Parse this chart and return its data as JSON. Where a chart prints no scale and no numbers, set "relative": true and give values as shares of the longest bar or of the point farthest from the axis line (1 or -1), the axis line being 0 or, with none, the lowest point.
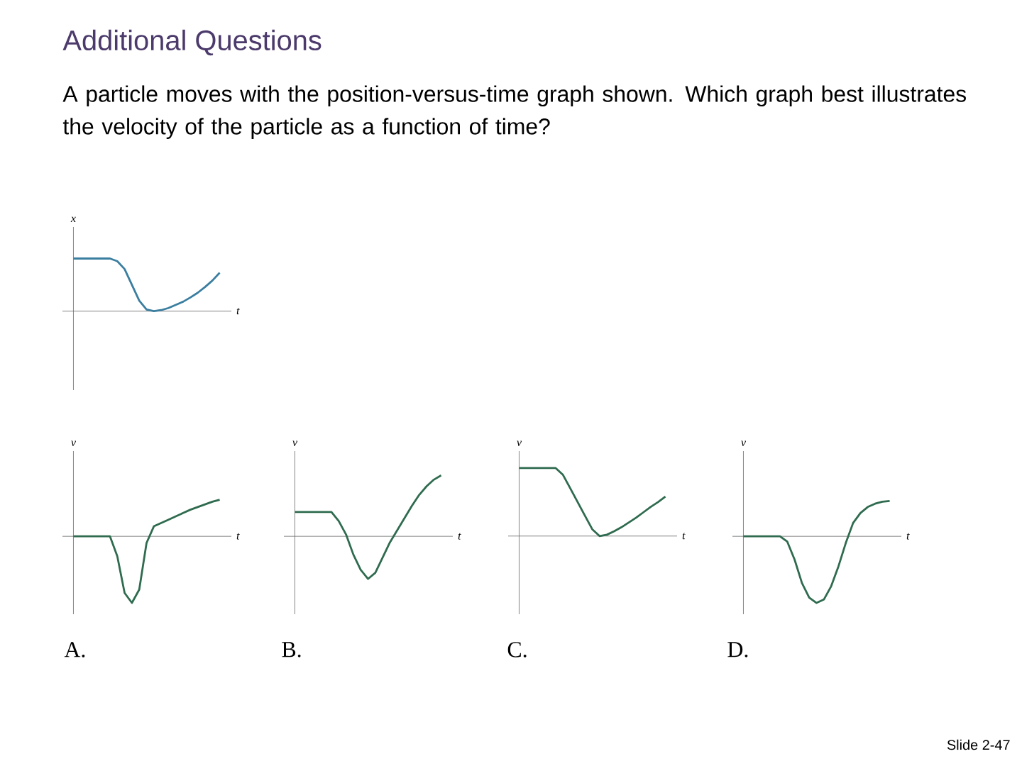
{
  "chart_data": [
    {
      "type": "line",
      "title": "Additional Questions",
      "subtitle": "A particle moves with the position-versus-time graph shown. Which graph best illustrates the velocity of the particle as a function of time?",
      "xlabel": "t",
      "ylabel": "x",
      "relative": true,
      "categories": [
        null,
        null,
        null,
        null,
        null,
        null,
        null,
        null,
        null,
        null,
        null,
        null,
        null,
        null,
        null,
        null,
        null,
        null,
        null,
        null,
        null
      ],
      "color": "#3a7ea0",
      "values": [
        1,
        1,
        1,
        1,
        1,
        1,
        0.95,
        0.8,
        0.5,
        0.2,
        0.03,
        0,
        0.02,
        0.06,
        0.12,
        0.18,
        0.26,
        0.35,
        0.46,
        0.58,
        0.73
      ],
      "annotations": [
        "Slide 2-47"
      ]
    },
    {
      "type": "line",
      "xlabel": "t",
      "ylabel": "v",
      "relative": true,
      "categories": [
        null,
        null,
        null,
        null,
        null,
        null,
        null,
        null,
        null,
        null,
        null,
        null,
        null,
        null,
        null,
        null,
        null,
        null,
        null,
        null,
        null
      ],
      "color": "#2f6b4f",
      "values": [
        0,
        0,
        0,
        0,
        0,
        0,
        -0.3,
        -0.85,
        -1,
        -0.8,
        -0.1,
        0.15,
        0.2,
        0.25,
        0.3,
        0.35,
        0.4,
        0.44,
        0.48,
        0.52,
        0.55
      ],
      "annotations": [
        "A."
      ]
    },
    {
      "type": "line",
      "xlabel": "t",
      "ylabel": "v",
      "relative": true,
      "categories": [
        null,
        null,
        null,
        null,
        null,
        null,
        null,
        null,
        null,
        null,
        null,
        null,
        null,
        null,
        null,
        null,
        null,
        null,
        null,
        null,
        null
      ],
      "color": "#2f6b4f",
      "values": [
        0.4,
        0.4,
        0.4,
        0.4,
        0.4,
        0.4,
        0.25,
        0.03,
        -0.3,
        -0.55,
        -0.7,
        -0.6,
        -0.35,
        -0.1,
        0.1,
        0.3,
        0.5,
        0.68,
        0.82,
        0.93,
        1
      ],
      "annotations": [
        "B."
      ]
    },
    {
      "type": "line",
      "xlabel": "t",
      "ylabel": "v",
      "relative": true,
      "categories": [
        null,
        null,
        null,
        null,
        null,
        null,
        null,
        null,
        null,
        null,
        null,
        null,
        null,
        null,
        null,
        null,
        null,
        null,
        null,
        null,
        null
      ],
      "color": "#2f6b4f",
      "values": [
        1,
        1,
        1,
        1,
        1,
        1,
        0.9,
        0.7,
        0.5,
        0.3,
        0.1,
        0,
        0.02,
        0.07,
        0.13,
        0.2,
        0.27,
        0.35,
        0.43,
        0.5,
        0.58
      ],
      "annotations": [
        "C."
      ]
    },
    {
      "type": "line",
      "xlabel": "t",
      "ylabel": "v",
      "relative": true,
      "categories": [
        null,
        null,
        null,
        null,
        null,
        null,
        null,
        null,
        null,
        null,
        null,
        null,
        null,
        null,
        null,
        null,
        null,
        null,
        null,
        null,
        null
      ],
      "color": "#2f6b4f",
      "values": [
        0,
        0,
        0,
        0,
        0,
        0,
        -0.08,
        -0.35,
        -0.7,
        -0.92,
        -1,
        -0.95,
        -0.75,
        -0.45,
        -0.1,
        0.2,
        0.35,
        0.44,
        0.49,
        0.52,
        0.53
      ],
      "annotations": [
        "D."
      ]
    }
  ]
}
